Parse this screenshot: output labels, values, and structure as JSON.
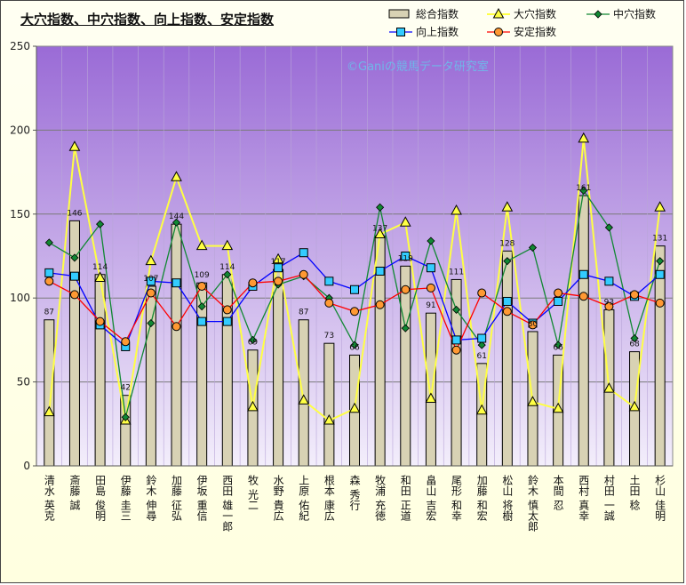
{
  "title": "大穴指数、中穴指数、向上指数、安定指数",
  "watermark": "©Ganiの競馬データ研究室",
  "colors": {
    "plot_bg_top": "#9a6bd6",
    "plot_bg_bottom": "#f3eefb",
    "bar_fill": "#d8d2b4",
    "bar_stroke": "#000000",
    "daiana": "#ffff44",
    "chuana": "#118833",
    "kojo": "#0000ff",
    "kojo_marker": "#33ccff",
    "antei": "#ff0000",
    "antei_marker": "#ff9933"
  },
  "chart_data": {
    "type": "bar",
    "categories": [
      "清水 英克",
      "斎藤 誠",
      "田島 俊明",
      "伊藤 圭三",
      "鈴木 伸尋",
      "加藤 征弘",
      "伊坂 重信",
      "西田 雄一郎",
      "牧 光二",
      "水野 貴広",
      "上原 佑紀",
      "根本 康広",
      "森 秀行",
      "牧浦 充徳",
      "和田 正道",
      "畠山 吉宏",
      "尾形 和幸",
      "加藤 和宏",
      "松山 将樹",
      "鈴木 慎太郎",
      "本間 忍",
      "西村 真幸",
      "村田 一誠",
      "土田 稔",
      "杉山 佳明"
    ],
    "series": [
      {
        "name": "総合指数",
        "type": "bar",
        "values": [
          87,
          146,
          114,
          42,
          107,
          144,
          109,
          114,
          69,
          117,
          87,
          73,
          66,
          137,
          119,
          91,
          111,
          61,
          128,
          80,
          66,
          161,
          93,
          68,
          131
        ]
      },
      {
        "name": "大穴指数",
        "type": "line",
        "values": [
          32,
          190,
          112,
          27,
          122,
          172,
          131,
          131,
          35,
          123,
          39,
          27,
          34,
          138,
          145,
          40,
          152,
          33,
          154,
          38,
          34,
          195,
          46,
          35,
          154
        ]
      },
      {
        "name": "中穴指数",
        "type": "line",
        "values": [
          133,
          124,
          144,
          29,
          85,
          145,
          95,
          114,
          75,
          108,
          113,
          100,
          72,
          154,
          82,
          134,
          93,
          72,
          122,
          130,
          72,
          164,
          142,
          76,
          122
        ]
      },
      {
        "name": "向上指数",
        "type": "line",
        "values": [
          115,
          113,
          84,
          71,
          110,
          109,
          86,
          86,
          107,
          118,
          127,
          110,
          105,
          116,
          125,
          118,
          75,
          76,
          98,
          85,
          98,
          114,
          110,
          101,
          114
        ]
      },
      {
        "name": "安定指数",
        "type": "line",
        "values": [
          110,
          102,
          86,
          74,
          103,
          83,
          107,
          93,
          109,
          110,
          114,
          97,
          92,
          96,
          105,
          106,
          69,
          103,
          92,
          84,
          103,
          101,
          95,
          102,
          97
        ]
      }
    ],
    "data_labels": [
      "87",
      "146",
      "114",
      "42",
      "107",
      "144",
      "109",
      "114",
      "69",
      "117",
      "87",
      "73",
      "66",
      "137",
      "119",
      "91",
      "111",
      "61",
      "128",
      "80",
      "66",
      "161",
      "93",
      "68",
      "131"
    ],
    "ylim": [
      0,
      250
    ],
    "yticks": [
      0,
      50,
      100,
      150,
      200,
      250
    ],
    "grid": true,
    "legend": "top-right"
  }
}
